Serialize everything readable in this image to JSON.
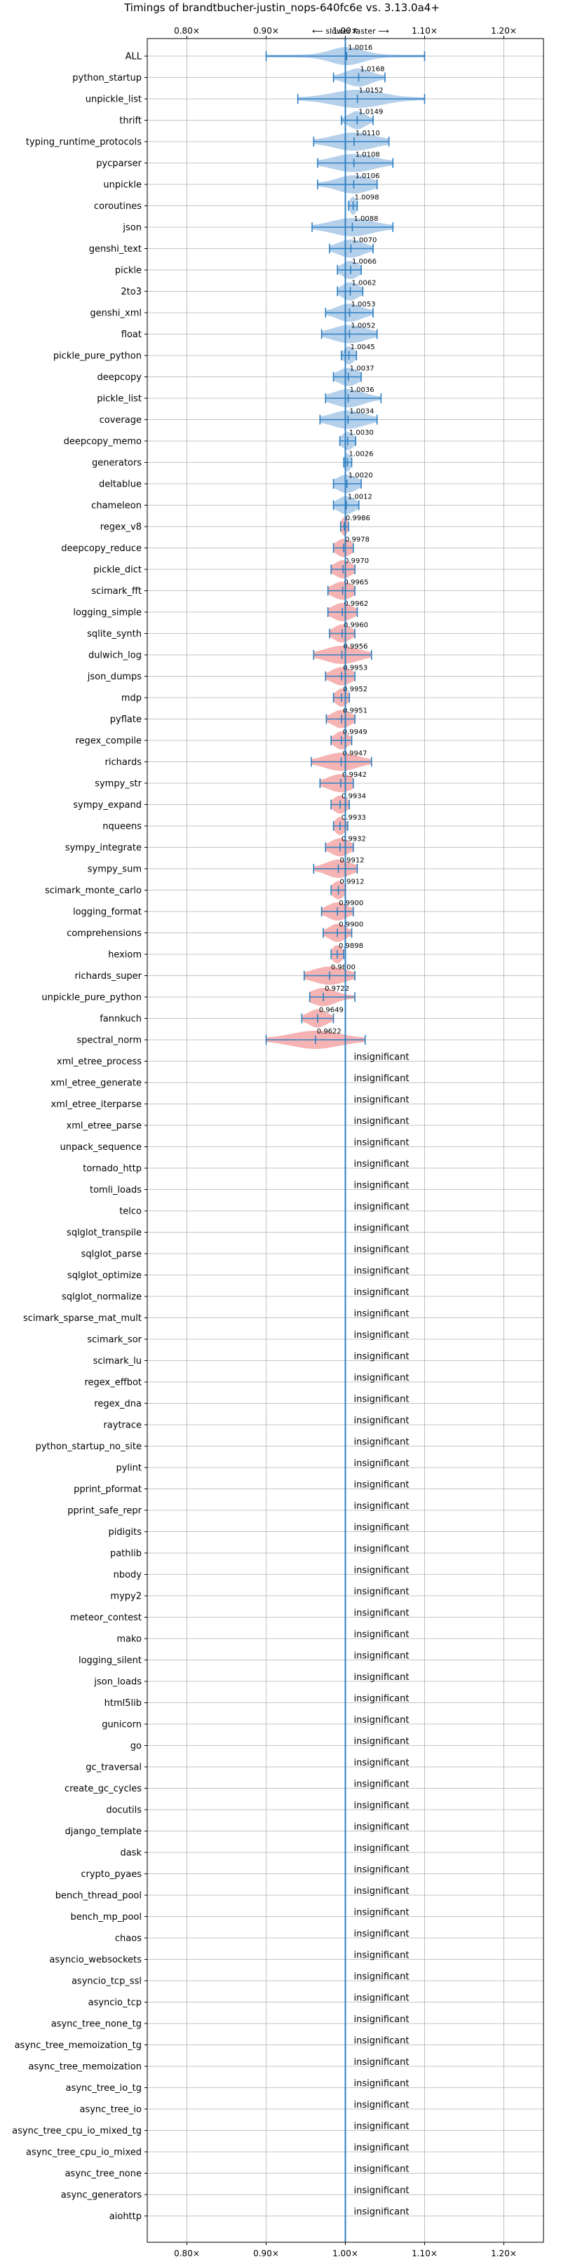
{
  "chart_data": {
    "type": "violin",
    "title": "Timings of brandtbucher-justin_nops-640fc6e vs. 3.13.0a4+",
    "direction_label": "⟵ slower   faster ⟶",
    "xlim": [
      0.75,
      1.25
    ],
    "xticks": [
      0.8,
      0.9,
      1.0,
      1.1,
      1.2
    ],
    "xtick_labels": [
      "0.80×",
      "0.90×",
      "1.00×",
      "1.10×",
      "1.20×"
    ],
    "grid": true,
    "reference_line": 1.0,
    "insignificant_label": "insignificant",
    "colors": {
      "faster": "#a7c8e8",
      "slower": "#f4a6a6",
      "line": "#2f7fc1",
      "grid": "#b0b0b0"
    },
    "benchmarks": [
      {
        "name": "ALL",
        "value": 1.0016,
        "label": "1.0016",
        "lo": 0.9,
        "hi": 1.1,
        "spread": 0.02
      },
      {
        "name": "python_startup",
        "value": 1.0168,
        "label": "1.0168",
        "lo": 0.985,
        "hi": 1.05,
        "spread": 0.015
      },
      {
        "name": "unpickle_list",
        "value": 1.0152,
        "label": "1.0152",
        "lo": 0.94,
        "hi": 1.1,
        "spread": 0.03
      },
      {
        "name": "thrift",
        "value": 1.0149,
        "label": "1.0149",
        "lo": 0.995,
        "hi": 1.035,
        "spread": 0.01
      },
      {
        "name": "typing_runtime_protocols",
        "value": 1.011,
        "label": "1.0110",
        "lo": 0.96,
        "hi": 1.055,
        "spread": 0.025
      },
      {
        "name": "pycparser",
        "value": 1.0108,
        "label": "1.0108",
        "lo": 0.965,
        "hi": 1.06,
        "spread": 0.025
      },
      {
        "name": "unpickle",
        "value": 1.0106,
        "label": "1.0106",
        "lo": 0.965,
        "hi": 1.04,
        "spread": 0.02
      },
      {
        "name": "coroutines",
        "value": 1.0098,
        "label": "1.0098",
        "lo": 1.004,
        "hi": 1.015,
        "spread": 0.004
      },
      {
        "name": "json",
        "value": 1.0088,
        "label": "1.0088",
        "lo": 0.958,
        "hi": 1.06,
        "spread": 0.025
      },
      {
        "name": "genshi_text",
        "value": 1.007,
        "label": "1.0070",
        "lo": 0.98,
        "hi": 1.035,
        "spread": 0.015
      },
      {
        "name": "pickle",
        "value": 1.0066,
        "label": "1.0066",
        "lo": 0.99,
        "hi": 1.02,
        "spread": 0.01
      },
      {
        "name": "2to3",
        "value": 1.0062,
        "label": "1.0062",
        "lo": 0.99,
        "hi": 1.022,
        "spread": 0.01
      },
      {
        "name": "genshi_xml",
        "value": 1.0053,
        "label": "1.0053",
        "lo": 0.975,
        "hi": 1.035,
        "spread": 0.015
      },
      {
        "name": "float",
        "value": 1.0052,
        "label": "1.0052",
        "lo": 0.97,
        "hi": 1.04,
        "spread": 0.02
      },
      {
        "name": "pickle_pure_python",
        "value": 1.0045,
        "label": "1.0045",
        "lo": 0.995,
        "hi": 1.014,
        "spread": 0.006
      },
      {
        "name": "deepcopy",
        "value": 1.0037,
        "label": "1.0037",
        "lo": 0.985,
        "hi": 1.02,
        "spread": 0.012
      },
      {
        "name": "pickle_list",
        "value": 1.0036,
        "label": "1.0036",
        "lo": 0.975,
        "hi": 1.045,
        "spread": 0.018
      },
      {
        "name": "coverage",
        "value": 1.0034,
        "label": "1.0034",
        "lo": 0.968,
        "hi": 1.04,
        "spread": 0.02
      },
      {
        "name": "deepcopy_memo",
        "value": 1.003,
        "label": "1.0030",
        "lo": 0.993,
        "hi": 1.013,
        "spread": 0.007
      },
      {
        "name": "generators",
        "value": 1.0026,
        "label": "1.0026",
        "lo": 0.998,
        "hi": 1.008,
        "spread": 0.004
      },
      {
        "name": "deltablue",
        "value": 1.002,
        "label": "1.0020",
        "lo": 0.985,
        "hi": 1.02,
        "spread": 0.012
      },
      {
        "name": "chameleon",
        "value": 1.0012,
        "label": "1.0012",
        "lo": 0.985,
        "hi": 1.017,
        "spread": 0.01
      },
      {
        "name": "regex_v8",
        "value": 0.9986,
        "label": "0.9986",
        "lo": 0.994,
        "hi": 1.004,
        "spread": 0.004
      },
      {
        "name": "deepcopy_reduce",
        "value": 0.9978,
        "label": "0.9978",
        "lo": 0.985,
        "hi": 1.01,
        "spread": 0.009
      },
      {
        "name": "pickle_dict",
        "value": 0.997,
        "label": "0.9970",
        "lo": 0.982,
        "hi": 1.012,
        "spread": 0.01
      },
      {
        "name": "scimark_fft",
        "value": 0.9965,
        "label": "0.9965",
        "lo": 0.978,
        "hi": 1.012,
        "spread": 0.012
      },
      {
        "name": "logging_simple",
        "value": 0.9962,
        "label": "0.9962",
        "lo": 0.978,
        "hi": 1.015,
        "spread": 0.012
      },
      {
        "name": "sqlite_synth",
        "value": 0.996,
        "label": "0.9960",
        "lo": 0.98,
        "hi": 1.012,
        "spread": 0.01
      },
      {
        "name": "dulwich_log",
        "value": 0.9956,
        "label": "0.9956",
        "lo": 0.96,
        "hi": 1.033,
        "spread": 0.02
      },
      {
        "name": "json_dumps",
        "value": 0.9953,
        "label": "0.9953",
        "lo": 0.975,
        "hi": 1.012,
        "spread": 0.012
      },
      {
        "name": "mdp",
        "value": 0.9952,
        "label": "0.9952",
        "lo": 0.985,
        "hi": 1.005,
        "spread": 0.007
      },
      {
        "name": "pyflate",
        "value": 0.9951,
        "label": "0.9951",
        "lo": 0.976,
        "hi": 1.012,
        "spread": 0.011
      },
      {
        "name": "regex_compile",
        "value": 0.9949,
        "label": "0.9949",
        "lo": 0.982,
        "hi": 1.008,
        "spread": 0.008
      },
      {
        "name": "richards",
        "value": 0.9947,
        "label": "0.9947",
        "lo": 0.957,
        "hi": 1.033,
        "spread": 0.02
      },
      {
        "name": "sympy_str",
        "value": 0.9942,
        "label": "0.9942",
        "lo": 0.968,
        "hi": 1.01,
        "spread": 0.015
      },
      {
        "name": "sympy_expand",
        "value": 0.9934,
        "label": "0.9934",
        "lo": 0.982,
        "hi": 1.005,
        "spread": 0.008
      },
      {
        "name": "nqueens",
        "value": 0.9933,
        "label": "0.9933",
        "lo": 0.985,
        "hi": 1.003,
        "spread": 0.006
      },
      {
        "name": "sympy_integrate",
        "value": 0.9932,
        "label": "0.9932",
        "lo": 0.975,
        "hi": 1.01,
        "spread": 0.011
      },
      {
        "name": "sympy_sum",
        "value": 0.9912,
        "label": "0.9912",
        "lo": 0.96,
        "hi": 1.015,
        "spread": 0.015
      },
      {
        "name": "scimark_monte_carlo",
        "value": 0.9912,
        "label": "0.9912",
        "lo": 0.982,
        "hi": 1.0,
        "spread": 0.007
      },
      {
        "name": "logging_format",
        "value": 0.99,
        "label": "0.9900",
        "lo": 0.97,
        "hi": 1.01,
        "spread": 0.012
      },
      {
        "name": "comprehensions",
        "value": 0.99,
        "label": "0.9900",
        "lo": 0.972,
        "hi": 1.008,
        "spread": 0.01
      },
      {
        "name": "hexiom",
        "value": 0.9898,
        "label": "0.9898",
        "lo": 0.982,
        "hi": 0.998,
        "spread": 0.006
      },
      {
        "name": "richards_super",
        "value": 0.98,
        "label": "0.9800",
        "lo": 0.948,
        "hi": 1.012,
        "spread": 0.02
      },
      {
        "name": "unpickle_pure_python",
        "value": 0.9722,
        "label": "0.9722",
        "lo": 0.955,
        "hi": 1.012,
        "spread": 0.015
      },
      {
        "name": "fannkuch",
        "value": 0.9649,
        "label": "0.9649",
        "lo": 0.945,
        "hi": 0.985,
        "spread": 0.011
      },
      {
        "name": "spectral_norm",
        "value": 0.9622,
        "label": "0.9622",
        "lo": 0.9,
        "hi": 1.025,
        "spread": 0.03
      }
    ],
    "insignificant": [
      "xml_etree_process",
      "xml_etree_generate",
      "xml_etree_iterparse",
      "xml_etree_parse",
      "unpack_sequence",
      "tornado_http",
      "tomli_loads",
      "telco",
      "sqlglot_transpile",
      "sqlglot_parse",
      "sqlglot_optimize",
      "sqlglot_normalize",
      "scimark_sparse_mat_mult",
      "scimark_sor",
      "scimark_lu",
      "regex_effbot",
      "regex_dna",
      "raytrace",
      "python_startup_no_site",
      "pylint",
      "pprint_pformat",
      "pprint_safe_repr",
      "pidigits",
      "pathlib",
      "nbody",
      "mypy2",
      "meteor_contest",
      "mako",
      "logging_silent",
      "json_loads",
      "html5lib",
      "gunicorn",
      "go",
      "gc_traversal",
      "create_gc_cycles",
      "docutils",
      "django_template",
      "dask",
      "crypto_pyaes",
      "bench_thread_pool",
      "bench_mp_pool",
      "chaos",
      "asyncio_websockets",
      "asyncio_tcp_ssl",
      "asyncio_tcp",
      "async_tree_none_tg",
      "async_tree_memoization_tg",
      "async_tree_memoization",
      "async_tree_io_tg",
      "async_tree_io",
      "async_tree_cpu_io_mixed_tg",
      "async_tree_cpu_io_mixed",
      "async_tree_none",
      "async_generators",
      "aiohttp"
    ]
  }
}
